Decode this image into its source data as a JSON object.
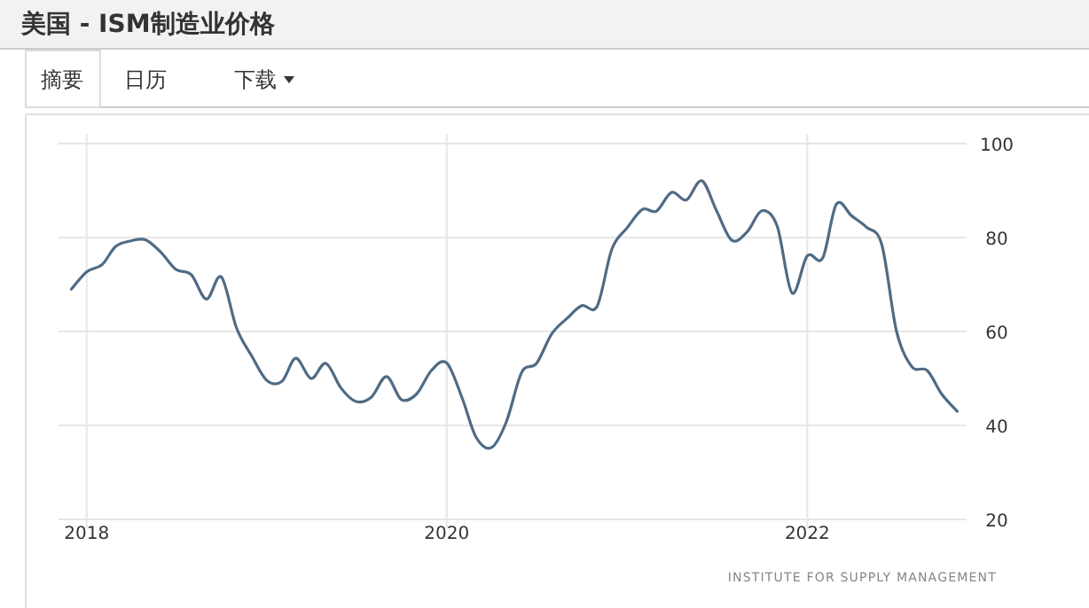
{
  "chart_data": {
    "type": "line",
    "title": "美国 - ISM制造业价格",
    "annotations": [
      "摘要",
      "日历",
      "下载",
      "INSTITUTE FOR SUPPLY MANAGEMENT"
    ],
    "x": [
      "2017-12",
      "2018-01",
      "2018-02",
      "2018-03",
      "2018-04",
      "2018-05",
      "2018-06",
      "2018-07",
      "2018-08",
      "2018-09",
      "2018-10",
      "2018-11",
      "2018-12",
      "2019-01",
      "2019-02",
      "2019-03",
      "2019-04",
      "2019-05",
      "2019-06",
      "2019-07",
      "2019-08",
      "2019-09",
      "2019-10",
      "2019-11",
      "2019-12",
      "2020-01",
      "2020-02",
      "2020-03",
      "2020-04",
      "2020-05",
      "2020-06",
      "2020-07",
      "2020-08",
      "2020-09",
      "2020-10",
      "2020-11",
      "2020-12",
      "2021-01",
      "2021-02",
      "2021-03",
      "2021-04",
      "2021-05",
      "2021-06",
      "2021-07",
      "2021-08",
      "2021-09",
      "2021-10",
      "2021-11",
      "2021-12",
      "2022-01",
      "2022-02",
      "2022-03",
      "2022-04",
      "2022-05",
      "2022-06",
      "2022-07",
      "2022-08",
      "2022-09",
      "2022-10",
      "2022-11"
    ],
    "values": [
      69,
      72.7,
      74.2,
      78.1,
      79.3,
      79.5,
      76.8,
      73.2,
      72.1,
      66.9,
      71.6,
      60.7,
      54.9,
      49.6,
      49.4,
      54.3,
      50,
      53.2,
      47.9,
      45.1,
      46,
      50.4,
      45.5,
      46.7,
      51.7,
      53.3,
      45.9,
      37.4,
      35.3,
      40.8,
      51.3,
      53.2,
      59.5,
      62.8,
      65.5,
      65.4,
      77.6,
      82.1,
      86,
      85.6,
      89.6,
      88,
      92.1,
      85.7,
      79.4,
      81.2,
      85.7,
      82.4,
      68.2,
      76.1,
      75.6,
      87.1,
      84.6,
      82.2,
      78.5,
      60,
      52.5,
      51.7,
      46.6,
      43
    ],
    "color": "#4f6b84",
    "xlim": [
      "2017-11-05",
      "2022-11-20"
    ],
    "xticks": [
      {
        "value": "2018-01",
        "label": "2018"
      },
      {
        "value": "2020-01",
        "label": "2020"
      },
      {
        "value": "2022-01",
        "label": "2022"
      }
    ],
    "ylim": [
      18,
      102
    ],
    "yticks": [
      20,
      40,
      60,
      80,
      100
    ],
    "grid": true
  }
}
